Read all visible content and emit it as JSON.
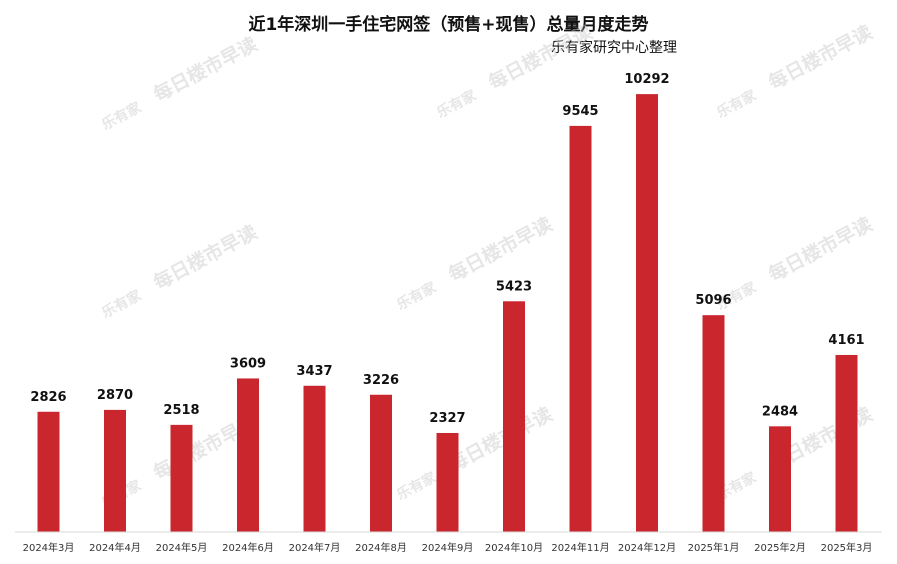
{
  "chart_data": {
    "type": "bar",
    "title": "近1年深圳一手住宅网签（预售+现售）总量月度走势",
    "subtitle": "乐有家研究中心整理",
    "xlabel": "",
    "ylabel": "",
    "ylim": [
      0,
      11000
    ],
    "grid": false,
    "legend": "none",
    "categories": [
      "2024年3月",
      "2024年4月",
      "2024年5月",
      "2024年6月",
      "2024年7月",
      "2024年8月",
      "2024年9月",
      "2024年10月",
      "2024年11月",
      "2024年12月",
      "2025年1月",
      "2025年2月",
      "2025年3月"
    ],
    "values": [
      2826,
      2870,
      2518,
      3609,
      3437,
      3226,
      2327,
      5423,
      9545,
      10292,
      5096,
      2484,
      4161
    ],
    "bar_color": "#c9262e"
  },
  "watermark": {
    "logo": "乐有家",
    "text": "每日楼市早读"
  }
}
